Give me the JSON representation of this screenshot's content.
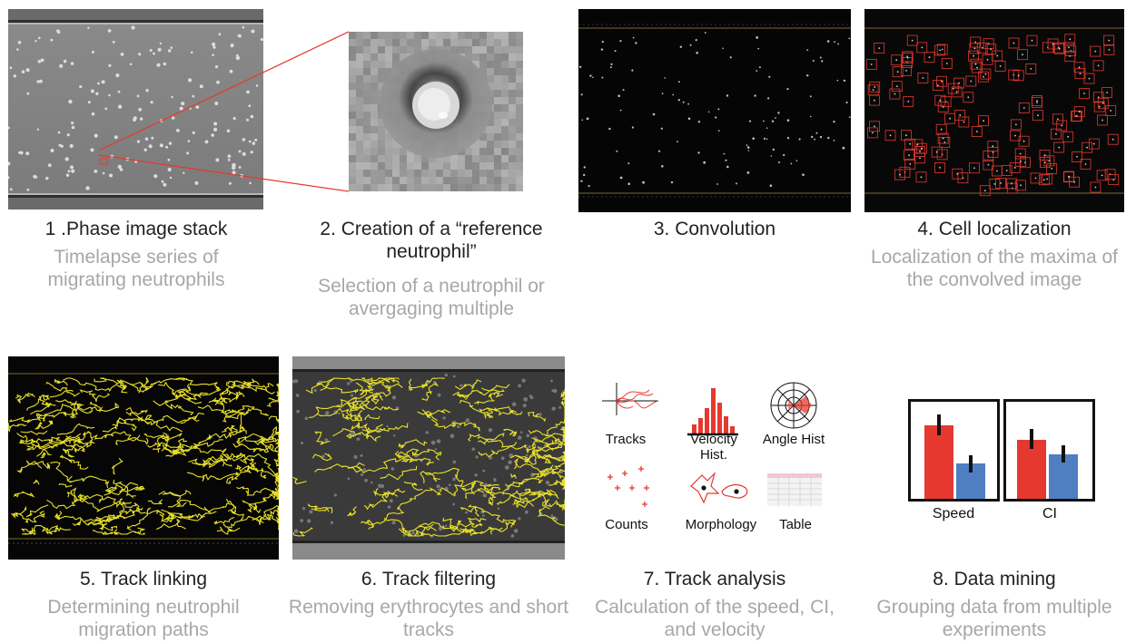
{
  "steps": [
    {
      "num_title": "1 .Phase image stack",
      "desc": "Timelapse series of migrating neutrophils"
    },
    {
      "num_title": "2. Creation of a “reference neutrophil”",
      "desc": "Selection of a neutrophil or avergaging multiple"
    },
    {
      "num_title": "3. Convolution",
      "desc": ""
    },
    {
      "num_title": "4. Cell localization",
      "desc": "Localization of the maxima of the convolved image"
    },
    {
      "num_title": "5. Track linking",
      "desc": "Determining neutrophil migration paths"
    },
    {
      "num_title": "6. Track filtering",
      "desc": "Removing erythrocytes and short tracks"
    },
    {
      "num_title": "7. Track analysis",
      "desc": "Calculation of the speed, CI, and velocity"
    },
    {
      "num_title": "8. Data mining",
      "desc": "Grouping data from multiple experiments"
    }
  ],
  "analysis_icons": {
    "tracks": "Tracks",
    "velocity": "Velocity Hist.",
    "angle": "Angle Hist",
    "counts": "Counts",
    "morphology": "Morphology",
    "table": "Table"
  },
  "data_mining": {
    "speed_label": "Speed",
    "ci_label": "CI"
  },
  "colors": {
    "red": "#e5392f",
    "blue": "#4f7fc1",
    "yellow": "#e8e02a",
    "caption": "#222222",
    "subcaption": "#a7a7a7"
  }
}
